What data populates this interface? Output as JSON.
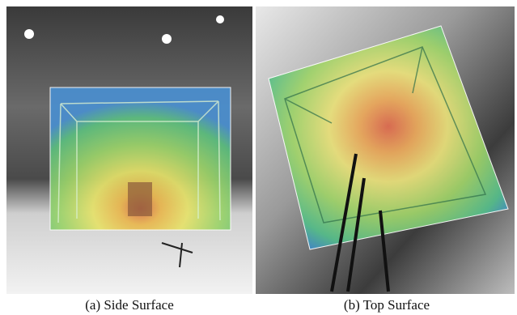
{
  "figure": {
    "panels": [
      {
        "caption": "(a) Side Surface"
      },
      {
        "caption": "(b) Top Surface"
      }
    ]
  }
}
